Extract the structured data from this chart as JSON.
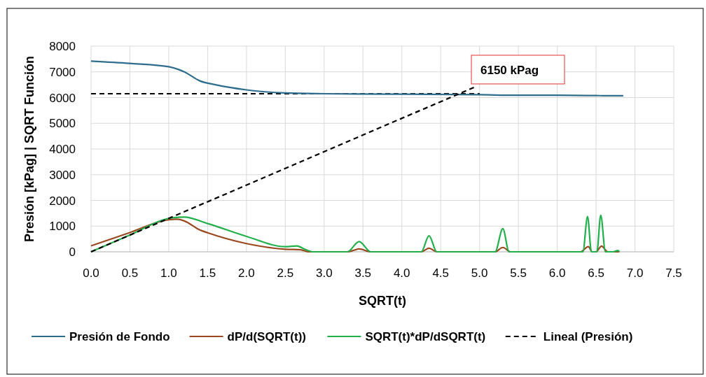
{
  "chart_data": {
    "type": "line",
    "xlabel": "SQRT(t)",
    "ylabel": "Presión [kPag] | SQRT Función",
    "xlim": [
      0,
      7.5
    ],
    "xticks": [
      {
        "value": 0,
        "label": "0.0"
      },
      {
        "value": 0.5,
        "label": "0.5"
      },
      {
        "value": 1,
        "label": "1.0"
      },
      {
        "value": 1.5,
        "label": "1.5"
      },
      {
        "value": 2,
        "label": "2.0"
      },
      {
        "value": 2.5,
        "label": "2.5"
      },
      {
        "value": 3,
        "label": "3.0"
      },
      {
        "value": 3.5,
        "label": "3.5"
      },
      {
        "value": 4,
        "label": "4.0"
      },
      {
        "value": 4.5,
        "label": "4.5"
      },
      {
        "value": 5,
        "label": "5.0"
      },
      {
        "value": 5.5,
        "label": "5.5"
      },
      {
        "value": 6,
        "label": "6.0"
      },
      {
        "value": 6.5,
        "label": "6.5"
      },
      {
        "value": 7,
        "label": "7.0"
      },
      {
        "value": 7.5,
        "label": "7.5"
      }
    ],
    "ylim": [
      0,
      8000
    ],
    "yticks": [
      0,
      1000,
      2000,
      3000,
      4000,
      5000,
      6000,
      7000,
      8000
    ],
    "grid": true,
    "legend": "bottom",
    "marker": "none",
    "series": [
      {
        "name": "Presión de Fondo",
        "color": "#2e6d8e",
        "x": [
          0,
          0.5,
          1.0,
          1.2,
          1.4,
          1.6,
          2.0,
          2.5,
          3.0,
          4.0,
          5.0,
          5.5,
          6.0,
          6.4,
          6.5,
          6.6,
          6.85
        ],
        "values": [
          7420,
          7330,
          7200,
          7000,
          6650,
          6500,
          6300,
          6180,
          6150,
          6130,
          6110,
          6090,
          6090,
          6080,
          6080,
          6070,
          6070
        ]
      },
      {
        "name": "dP/d(SQRT(t))",
        "color": "#99481f",
        "x": [
          0,
          0.5,
          1.0,
          1.1,
          1.2,
          1.4,
          1.5,
          2.0,
          2.5,
          2.7,
          2.8,
          3.3,
          3.45,
          3.6,
          4.25,
          4.35,
          4.45,
          5.2,
          5.3,
          5.4,
          6.3,
          6.4,
          6.45,
          6.5,
          6.57,
          6.65,
          6.8
        ],
        "values": [
          230,
          750,
          1250,
          1270,
          1200,
          850,
          740,
          320,
          100,
          80,
          0,
          0,
          110,
          0,
          0,
          140,
          0,
          0,
          170,
          0,
          0,
          200,
          0,
          0,
          220,
          0,
          0
        ]
      },
      {
        "name": "SQRT(t)*dP/dSQRT(t)",
        "color": "#22b04b",
        "x": [
          0,
          0.5,
          1.0,
          1.2,
          1.5,
          2.0,
          2.5,
          2.65,
          2.75,
          2.85,
          3.3,
          3.45,
          3.6,
          4.25,
          4.35,
          4.45,
          5.2,
          5.3,
          5.38,
          6.33,
          6.39,
          6.44,
          6.51,
          6.56,
          6.62,
          6.72,
          6.78,
          6.8
        ],
        "values": [
          0,
          650,
          1300,
          1350,
          1100,
          600,
          200,
          230,
          100,
          0,
          0,
          400,
          0,
          0,
          620,
          0,
          0,
          900,
          0,
          0,
          1370,
          0,
          0,
          1420,
          0,
          0,
          50,
          0
        ]
      },
      {
        "name": "Lineal (Presión)",
        "color": "#000000",
        "line_style": "dashed",
        "x": [
          0,
          4.93
        ],
        "values": [
          0,
          6400
        ]
      }
    ],
    "ref_lines": [
      {
        "axis": "y",
        "value": 6150,
        "label": "6150 kPag",
        "color": "#000000",
        "line_style": "dashed"
      }
    ]
  }
}
